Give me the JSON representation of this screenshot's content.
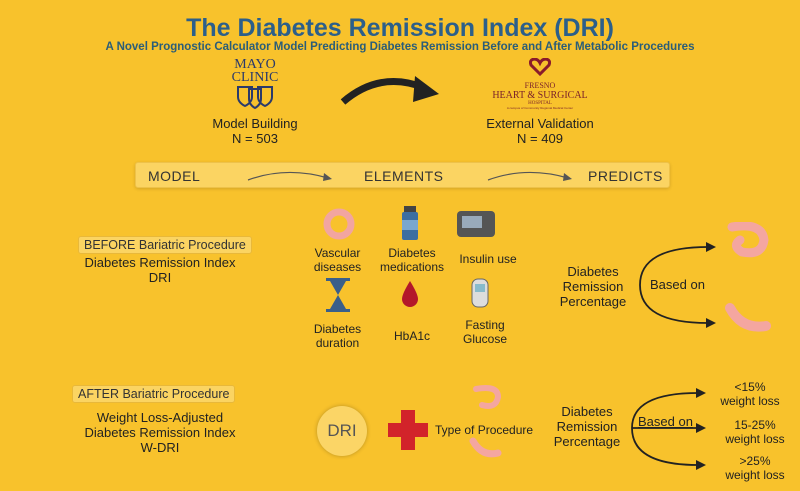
{
  "header": {
    "title": "The Diabetes Remission Index (DRI)",
    "subtitle": "A Novel Prognostic Calculator Model Predicting Diabetes Remission Before and After Metabolic Procedures"
  },
  "left_site": {
    "logo_line1": "MAYO",
    "logo_line2": "CLINIC",
    "label": "Model Building",
    "n": "N = 503"
  },
  "right_site": {
    "logo_line1": "FRESNO",
    "logo_line2": "HEART & SURGICAL",
    "logo_line3": "HOSPITAL",
    "logo_line4": "A campus of Community Regional Medical Center",
    "label": "External Validation",
    "n": "N = 409"
  },
  "band": {
    "model": "MODEL",
    "elements": "ELEMENTS",
    "predicts": "PREDICTS"
  },
  "before": {
    "tag": "BEFORE Bariatric Procedure",
    "line1": "Diabetes Remission Index",
    "line2": "DRI",
    "elements": [
      {
        "l1": "Vascular",
        "l2": "diseases"
      },
      {
        "l1": "Diabetes",
        "l2": "medications"
      },
      {
        "l1": "Insulin use",
        "l2": ""
      },
      {
        "l1": "Diabetes",
        "l2": "duration"
      },
      {
        "l1": "HbA1c",
        "l2": ""
      },
      {
        "l1": "Fasting",
        "l2": "Glucose"
      }
    ],
    "outcome": [
      "Diabetes",
      "Remission",
      "Percentage"
    ],
    "based_on": "Based on"
  },
  "after": {
    "tag": "AFTER Bariatric Procedure",
    "line1": "Weight Loss-Adjusted",
    "line2": "Diabetes Remission Index",
    "line3": "W-DRI",
    "dri": "DRI",
    "procedure": "Type of Procedure",
    "outcome": [
      "Diabetes",
      "Remission",
      "Percentage"
    ],
    "based_on": "Based on",
    "bins": [
      {
        "l1": "<15%",
        "l2": "weight loss"
      },
      {
        "l1": "15-25%",
        "l2": "weight loss"
      },
      {
        "l1": ">25%",
        "l2": "weight loss"
      }
    ]
  }
}
